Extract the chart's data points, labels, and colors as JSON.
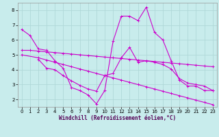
{
  "xlabel": "Windchill (Refroidissement éolien,°C)",
  "background_color": "#c8ecec",
  "grid_color": "#b0d8d8",
  "line_color": "#cc00cc",
  "xlim": [
    -0.5,
    23.5
  ],
  "ylim": [
    1.5,
    8.5
  ],
  "yticks": [
    2,
    3,
    4,
    5,
    6,
    7,
    8
  ],
  "xticks": [
    0,
    1,
    2,
    3,
    4,
    5,
    6,
    7,
    8,
    9,
    10,
    11,
    12,
    13,
    14,
    15,
    16,
    17,
    18,
    19,
    20,
    21,
    22,
    23
  ],
  "series": [
    {
      "x": [
        0,
        1,
        2,
        3,
        4,
        5,
        6,
        7,
        8,
        9,
        10,
        11,
        12,
        13,
        14,
        15,
        16,
        17,
        18,
        19,
        20,
        21,
        22,
        23
      ],
      "y": [
        6.7,
        6.3,
        5.4,
        5.3,
        4.6,
        4.1,
        2.8,
        2.6,
        2.3,
        1.7,
        2.6,
        5.9,
        7.6,
        7.6,
        7.3,
        8.2,
        6.5,
        6.0,
        4.6,
        3.3,
        2.9,
        2.9,
        2.6,
        2.6
      ]
    },
    {
      "x": [
        0,
        1,
        2,
        3,
        4,
        5,
        6,
        7,
        8,
        9,
        10,
        11,
        12,
        13,
        14,
        15,
        16,
        17,
        18,
        19,
        20,
        21,
        22,
        23
      ],
      "y": [
        5.3,
        5.3,
        5.25,
        5.2,
        5.15,
        5.1,
        5.05,
        5.0,
        4.95,
        4.9,
        4.85,
        4.8,
        4.75,
        4.7,
        4.65,
        4.6,
        4.55,
        4.5,
        4.45,
        4.4,
        4.35,
        4.3,
        4.25,
        4.2
      ]
    },
    {
      "x": [
        0,
        2,
        3,
        4,
        5,
        6,
        7,
        8,
        9,
        10,
        11,
        12,
        13,
        14,
        15,
        16,
        17,
        18,
        19,
        20,
        21,
        22,
        23
      ],
      "y": [
        5.0,
        4.8,
        4.65,
        4.5,
        4.35,
        4.2,
        4.05,
        3.9,
        3.75,
        3.6,
        3.45,
        3.3,
        3.15,
        3.0,
        2.85,
        2.7,
        2.55,
        2.4,
        2.25,
        2.1,
        1.95,
        1.8,
        1.65
      ]
    },
    {
      "x": [
        2,
        3,
        4,
        5,
        6,
        7,
        8,
        9,
        10,
        11,
        12,
        13,
        14,
        15,
        16,
        17,
        18,
        19,
        20,
        21,
        22,
        23
      ],
      "y": [
        4.7,
        4.1,
        4.0,
        3.6,
        3.25,
        2.95,
        2.7,
        2.55,
        3.6,
        3.75,
        4.8,
        5.5,
        4.5,
        4.6,
        4.5,
        4.35,
        4.05,
        3.4,
        3.1,
        3.0,
        2.9,
        2.6
      ]
    }
  ]
}
